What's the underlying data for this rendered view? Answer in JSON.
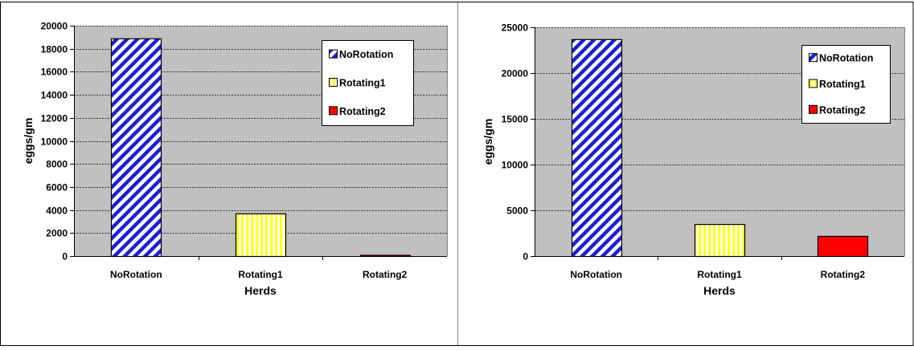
{
  "chart_data": [
    {
      "type": "bar",
      "title": "",
      "xlabel": "Herds",
      "ylabel": "eggs/gm",
      "categories": [
        "NoRotation",
        "Rotating1",
        "Rotating2"
      ],
      "values": [
        18900,
        3700,
        100
      ],
      "ylim": [
        0,
        20000
      ],
      "ytick_step": 2000,
      "grid": true,
      "legend": {
        "placement": "top-right",
        "entries": [
          "NoRotation",
          "Rotating1",
          "Rotating2"
        ]
      },
      "colors": {
        "plot_background": "#c0c0c0",
        "NoRotation": "#1f1fd0",
        "Rotating1": "#ffff33",
        "Rotating2": "#ff0000"
      }
    },
    {
      "type": "bar",
      "title": "",
      "xlabel": "Herds",
      "ylabel": "eggs/gm",
      "categories": [
        "NoRotation",
        "Rotating1",
        "Rotating2"
      ],
      "values": [
        23700,
        3500,
        2200
      ],
      "ylim": [
        0,
        25000
      ],
      "ytick_step": 5000,
      "grid": true,
      "legend": {
        "placement": "top-right",
        "entries": [
          "NoRotation",
          "Rotating1",
          "Rotating2"
        ]
      },
      "colors": {
        "plot_background": "#c0c0c0",
        "NoRotation": "#1f1fd0",
        "Rotating1": "#ffff33",
        "Rotating2": "#ff0000"
      }
    }
  ]
}
